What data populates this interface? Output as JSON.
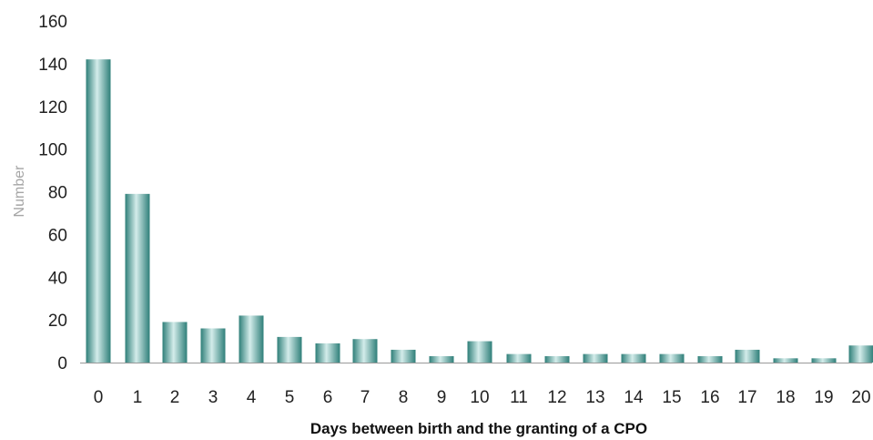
{
  "chart_data": {
    "type": "bar",
    "title": "",
    "xlabel": "Days between birth and the granting of a CPO",
    "ylabel": "Number",
    "categories": [
      "0",
      "1",
      "2",
      "3",
      "4",
      "5",
      "6",
      "7",
      "8",
      "9",
      "10",
      "11",
      "12",
      "13",
      "14",
      "15",
      "16",
      "17",
      "18",
      "19",
      "20"
    ],
    "values": [
      142,
      79,
      19,
      16,
      22,
      12,
      9,
      11,
      6,
      3,
      10,
      4,
      3,
      4,
      4,
      4,
      3,
      6,
      2,
      2,
      8
    ],
    "ylim": [
      0,
      160
    ],
    "yticks": [
      "0",
      "20",
      "40",
      "60",
      "80",
      "100",
      "120",
      "140",
      "160"
    ],
    "grid": false,
    "legend": "none",
    "colors": {
      "bar_dark": "#2f7f79",
      "bar_light": "#d3ecea",
      "baseline": "#999999"
    }
  }
}
